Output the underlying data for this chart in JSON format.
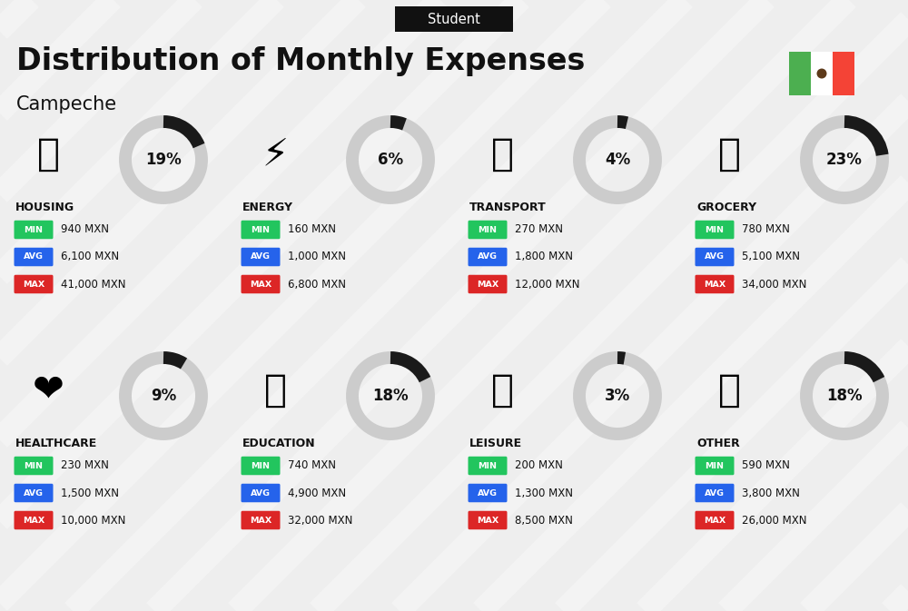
{
  "title": "Distribution of Monthly Expenses",
  "subtitle": "Student",
  "location": "Campeche",
  "bg_color": "#eeeeee",
  "categories": [
    {
      "name": "HOUSING",
      "pct": 19,
      "min_val": "940 MXN",
      "avg_val": "6,100 MXN",
      "max_val": "41,000 MXN",
      "icon": "🏢",
      "row": 0,
      "col": 0
    },
    {
      "name": "ENERGY",
      "pct": 6,
      "min_val": "160 MXN",
      "avg_val": "1,000 MXN",
      "max_val": "6,800 MXN",
      "icon": "⚡",
      "row": 0,
      "col": 1
    },
    {
      "name": "TRANSPORT",
      "pct": 4,
      "min_val": "270 MXN",
      "avg_val": "1,800 MXN",
      "max_val": "12,000 MXN",
      "icon": "🚌",
      "row": 0,
      "col": 2
    },
    {
      "name": "GROCERY",
      "pct": 23,
      "min_val": "780 MXN",
      "avg_val": "5,100 MXN",
      "max_val": "34,000 MXN",
      "icon": "🛒",
      "row": 0,
      "col": 3
    },
    {
      "name": "HEALTHCARE",
      "pct": 9,
      "min_val": "230 MXN",
      "avg_val": "1,500 MXN",
      "max_val": "10,000 MXN",
      "icon": "❤",
      "row": 1,
      "col": 0
    },
    {
      "name": "EDUCATION",
      "pct": 18,
      "min_val": "740 MXN",
      "avg_val": "4,900 MXN",
      "max_val": "32,000 MXN",
      "icon": "🎓",
      "row": 1,
      "col": 1
    },
    {
      "name": "LEISURE",
      "pct": 3,
      "min_val": "200 MXN",
      "avg_val": "1,300 MXN",
      "max_val": "8,500 MXN",
      "icon": "🛍",
      "row": 1,
      "col": 2
    },
    {
      "name": "OTHER",
      "pct": 18,
      "min_val": "590 MXN",
      "avg_val": "3,800 MXN",
      "max_val": "26,000 MXN",
      "icon": "💰",
      "row": 1,
      "col": 3
    }
  ],
  "min_color": "#22c55e",
  "avg_color": "#2563eb",
  "max_color": "#dc2626",
  "text_color": "#111111",
  "circle_dark": "#1a1a1a",
  "circle_light": "#cccccc",
  "flag_green": "#4caf50",
  "flag_white": "#ffffff",
  "flag_red": "#f44336"
}
